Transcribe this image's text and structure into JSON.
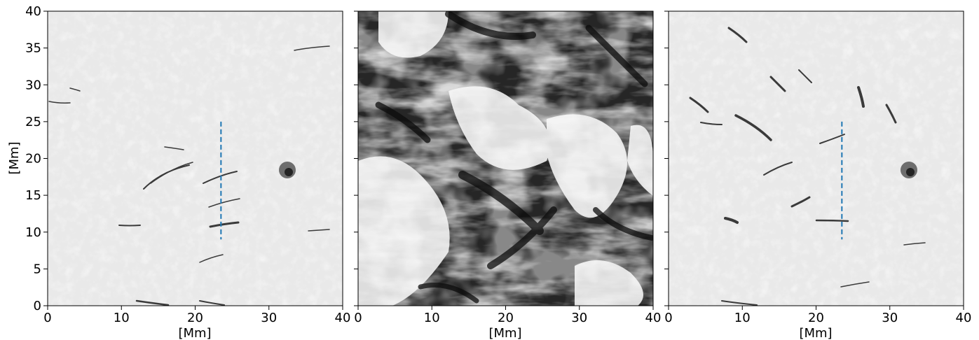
{
  "figure": {
    "panels": [
      {
        "id": "left",
        "x_ticks": [
          "0",
          "10",
          "20",
          "30",
          "40"
        ],
        "y_ticks": [
          "0",
          "5",
          "10",
          "15",
          "20",
          "25",
          "30",
          "35",
          "40"
        ],
        "x_label": "[Mm]",
        "y_label": "[Mm]",
        "has_dashed_line": true,
        "dashed_line_x": 23.5,
        "dashed_line_y_range": [
          9,
          25
        ]
      },
      {
        "id": "middle",
        "x_ticks": [
          "0",
          "10",
          "20",
          "30",
          "40"
        ],
        "x_label": "[Mm]",
        "has_dashed_line": false
      },
      {
        "id": "right",
        "x_ticks": [
          "0",
          "10",
          "20",
          "30",
          "40"
        ],
        "x_label": "[Mm]",
        "has_dashed_line": true,
        "dashed_line_x": 23.5,
        "dashed_line_y_range": [
          9,
          25
        ]
      }
    ],
    "axis_range": [
      0,
      40
    ],
    "dashed_line_color": "#1f77b4"
  }
}
